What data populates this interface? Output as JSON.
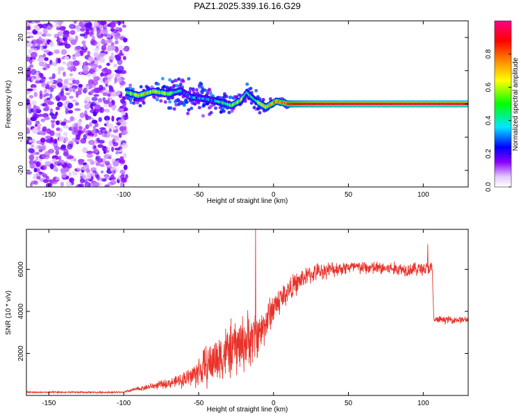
{
  "title": "PAZ1.2025.339.16.16.G29",
  "chart_data": [
    {
      "type": "heatmap",
      "xlabel": "Height of straight line (km)",
      "ylabel": "Frequency (Hz)",
      "xlim": [
        -165,
        130
      ],
      "ylim": [
        -25,
        25
      ],
      "xticks": [
        -150,
        -100,
        -50,
        0,
        50,
        100
      ],
      "yticks": [
        -20,
        -10,
        0,
        10,
        20
      ],
      "colorbar": {
        "label": "Normalized spectral amplitude",
        "range": [
          0,
          1
        ],
        "ticks": [
          0.0,
          0.2,
          0.4,
          0.6,
          0.8
        ],
        "tick_labels": [
          "0.0",
          "0.2",
          "0.4",
          "0.6",
          "0.8"
        ],
        "colors": [
          "#ffffff",
          "#e6ccff",
          "#8800ff",
          "#0000ff",
          "#00e6ff",
          "#00ff00",
          "#ffff00",
          "#ff8800",
          "#ff0000",
          "#ff0088"
        ]
      },
      "noise_region": {
        "x": [
          -165,
          -98
        ],
        "amplitude": 0.15
      },
      "ridge": [
        {
          "x": -98,
          "f": 3.5,
          "amp": 0.45
        },
        {
          "x": -90,
          "f": 2.5,
          "amp": 0.65
        },
        {
          "x": -80,
          "f": 3.8,
          "amp": 0.6
        },
        {
          "x": -70,
          "f": 3.0,
          "amp": 0.55
        },
        {
          "x": -62,
          "f": 4.0,
          "amp": 0.35
        },
        {
          "x": -55,
          "f": 2.0,
          "amp": 0.3
        },
        {
          "x": -45,
          "f": 1.5,
          "amp": 0.35
        },
        {
          "x": -35,
          "f": 0.5,
          "amp": 0.4
        },
        {
          "x": -28,
          "f": -0.5,
          "amp": 0.55
        },
        {
          "x": -22,
          "f": 1.0,
          "amp": 0.6
        },
        {
          "x": -18,
          "f": 3.5,
          "amp": 0.4
        },
        {
          "x": -12,
          "f": 1.0,
          "amp": 0.5
        },
        {
          "x": -5,
          "f": -1.0,
          "amp": 0.65
        },
        {
          "x": 2,
          "f": 0.8,
          "amp": 0.75
        },
        {
          "x": 10,
          "f": 0.0,
          "amp": 0.85
        },
        {
          "x": 20,
          "f": 0.0,
          "amp": 0.9
        },
        {
          "x": 30,
          "f": 0.0,
          "amp": 0.92
        },
        {
          "x": 60,
          "f": 0.0,
          "amp": 0.94
        },
        {
          "x": 100,
          "f": 0.0,
          "amp": 0.95
        },
        {
          "x": 130,
          "f": 0.0,
          "amp": 0.95
        }
      ]
    },
    {
      "type": "line",
      "xlabel": "Height of straight line (km)",
      "ylabel": "SNR (10 * v/v)",
      "xlim": [
        -165,
        130
      ],
      "ylim": [
        0,
        7900
      ],
      "xticks": [
        -150,
        -100,
        -50,
        0,
        50,
        100
      ],
      "yticks": [
        2000,
        4000,
        6000
      ],
      "line_color": "#e8332a",
      "series": [
        {
          "name": "SNR",
          "profile": [
            {
              "x": -165,
              "mean": 150,
              "noise": 60
            },
            {
              "x": -100,
              "mean": 150,
              "noise": 60
            },
            {
              "x": -95,
              "mean": 250,
              "noise": 120
            },
            {
              "x": -80,
              "mean": 450,
              "noise": 250
            },
            {
              "x": -65,
              "mean": 650,
              "noise": 400
            },
            {
              "x": -55,
              "mean": 900,
              "noise": 800
            },
            {
              "x": -45,
              "mean": 1400,
              "noise": 1500
            },
            {
              "x": -35,
              "mean": 1900,
              "noise": 1900
            },
            {
              "x": -25,
              "mean": 2300,
              "noise": 2100
            },
            {
              "x": -15,
              "mean": 2700,
              "noise": 2000
            },
            {
              "x": -8,
              "mean": 3100,
              "noise": 1500
            },
            {
              "x": 0,
              "mean": 4200,
              "noise": 1200
            },
            {
              "x": 10,
              "mean": 5000,
              "noise": 900
            },
            {
              "x": 20,
              "mean": 5600,
              "noise": 700
            },
            {
              "x": 30,
              "mean": 5900,
              "noise": 600
            },
            {
              "x": 50,
              "mean": 6100,
              "noise": 500
            },
            {
              "x": 70,
              "mean": 6050,
              "noise": 500
            },
            {
              "x": 90,
              "mean": 6000,
              "noise": 500
            },
            {
              "x": 104,
              "mean": 6050,
              "noise": 500
            },
            {
              "x": 106,
              "mean": 6000,
              "noise": 500
            },
            {
              "x": 107,
              "mean": 3600,
              "noise": 250
            },
            {
              "x": 130,
              "mean": 3600,
              "noise": 250
            }
          ],
          "spikes": [
            {
              "x": -12,
              "y": 7900
            },
            {
              "x": 103,
              "y": 7200
            }
          ]
        }
      ]
    }
  ]
}
